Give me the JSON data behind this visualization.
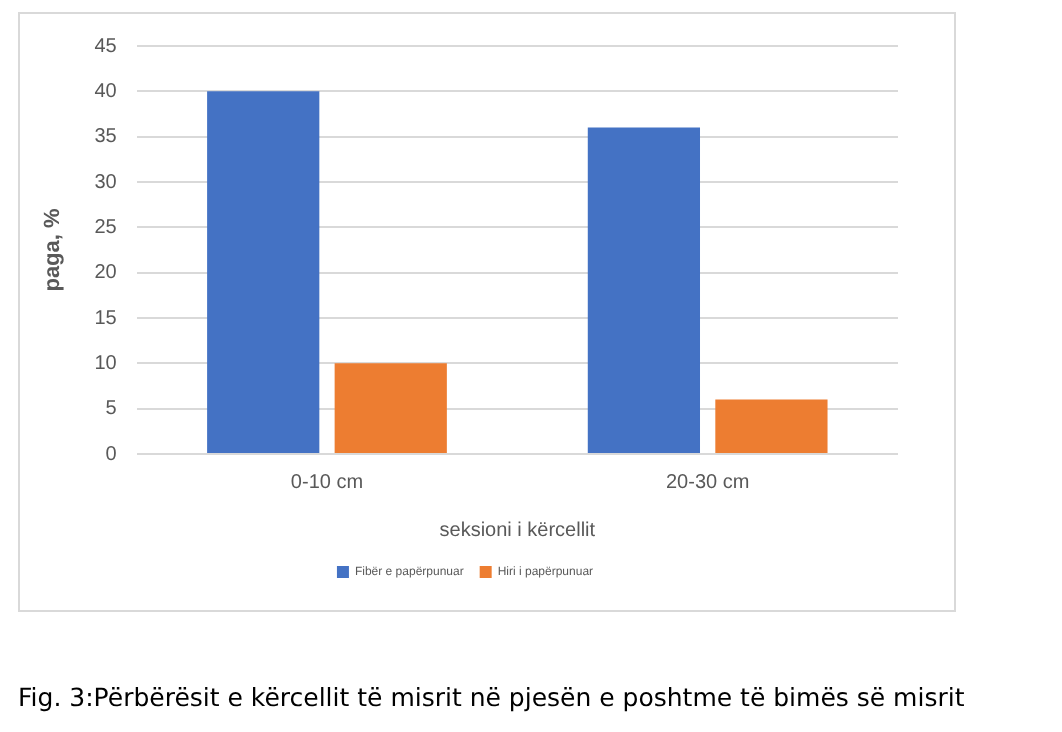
{
  "chart_data": {
    "type": "bar",
    "xlabel": "seksioni i kërcellit",
    "ylabel": "paga, %",
    "categories": [
      "0-10 cm",
      "20-30 cm"
    ],
    "series": [
      {
        "name": "Fibër e papërpunuar",
        "color": "#4472c4",
        "values": [
          40,
          36
        ]
      },
      {
        "name": "Hiri i papërpunuar",
        "color": "#ed7d31",
        "values": [
          10,
          6
        ]
      }
    ],
    "ylim": [
      0,
      45
    ],
    "yticks": [
      0,
      5,
      10,
      15,
      20,
      25,
      30,
      35,
      40,
      45
    ],
    "grid": "y",
    "legend": "bottom",
    "annotations": [
      "Fig. 3:Përbërësit e kërcellit të misrit në pjesën e poshtme të bimës së misrit"
    ]
  }
}
